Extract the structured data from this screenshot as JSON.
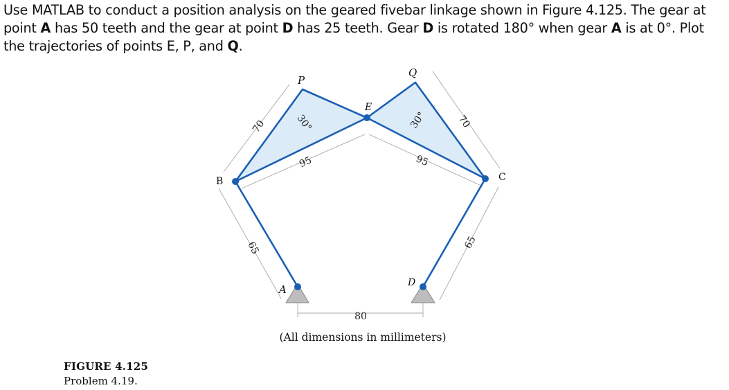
{
  "problem": {
    "part1": "Use MATLAB to conduct a position analysis on the geared fivebar linkage shown in Figure 4.125. The gear at point ",
    "point_a": "A",
    "part2": " has 50 teeth and the gear at point ",
    "point_d": "D",
    "part3": " has 25 teeth. Gear ",
    "point_d2": "D",
    "part4": " is rotated 180° when gear ",
    "point_a2": "A",
    "part5": " is at 0°. Plot the trajectories of points E, P, and ",
    "point_q": "Q",
    "part6": "."
  },
  "figure": {
    "labels": {
      "P": "P",
      "Q": "Q",
      "E": "E",
      "B": "B",
      "C": "C",
      "A": "A",
      "D": "D"
    },
    "dimensions": {
      "bp": "70",
      "qc": "70",
      "angle_left": "30°",
      "angle_right": "30°",
      "pe": "95",
      "eq": "95",
      "ab": "65",
      "cd": "65",
      "ad": "80"
    },
    "note": "(All dimensions in millimeters)",
    "colors": {
      "link": "#1a5fb4",
      "fill": "#dcebf8",
      "ground": "#bdbdbd",
      "dim": "#9a9a9a"
    }
  },
  "caption": {
    "figure_label": "FIGURE 4.125",
    "problem_label": "Problem 4.19."
  }
}
